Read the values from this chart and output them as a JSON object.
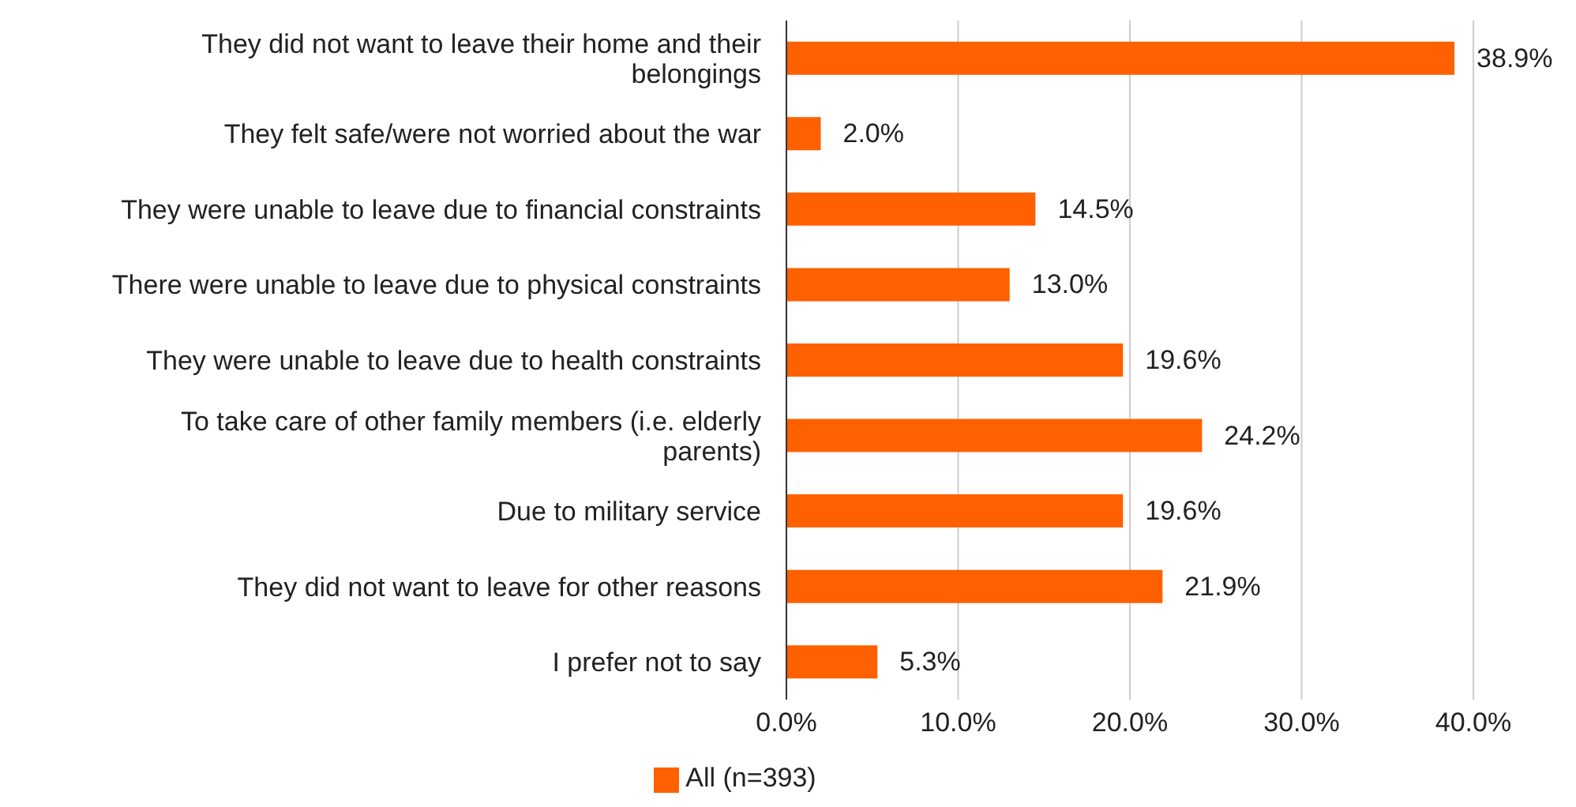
{
  "chart_data": {
    "type": "bar",
    "orientation": "horizontal",
    "categories": [
      "They did not want to leave their home and their belongings",
      "They felt safe/were not worried about the war",
      "They were unable to leave due to financial constraints",
      "There were unable to leave due to physical constraints",
      "They were unable to leave due to health constraints",
      "To take care of other family members (i.e. elderly parents)",
      "Due to military service",
      "They did not want to leave for other reasons",
      "I prefer not to say"
    ],
    "series": [
      {
        "name": "All (n=393)",
        "color": "#ff6000",
        "values": [
          38.9,
          2.0,
          14.5,
          13.0,
          19.6,
          24.2,
          19.6,
          21.9,
          5.3
        ],
        "value_labels": [
          "38.9%",
          "2.0%",
          "14.5%",
          "13.0%",
          "19.6%",
          "24.2%",
          "19.6%",
          "21.9%",
          "5.3%"
        ]
      }
    ],
    "xlim": [
      0,
      40
    ],
    "xticks": [
      {
        "value": 0,
        "label": "0.0%"
      },
      {
        "value": 10,
        "label": "10.0%"
      },
      {
        "value": 20,
        "label": "20.0%"
      },
      {
        "value": 30,
        "label": "30.0%"
      },
      {
        "value": 40,
        "label": "40.0%"
      }
    ],
    "grid": "x",
    "legend": "bottom"
  }
}
